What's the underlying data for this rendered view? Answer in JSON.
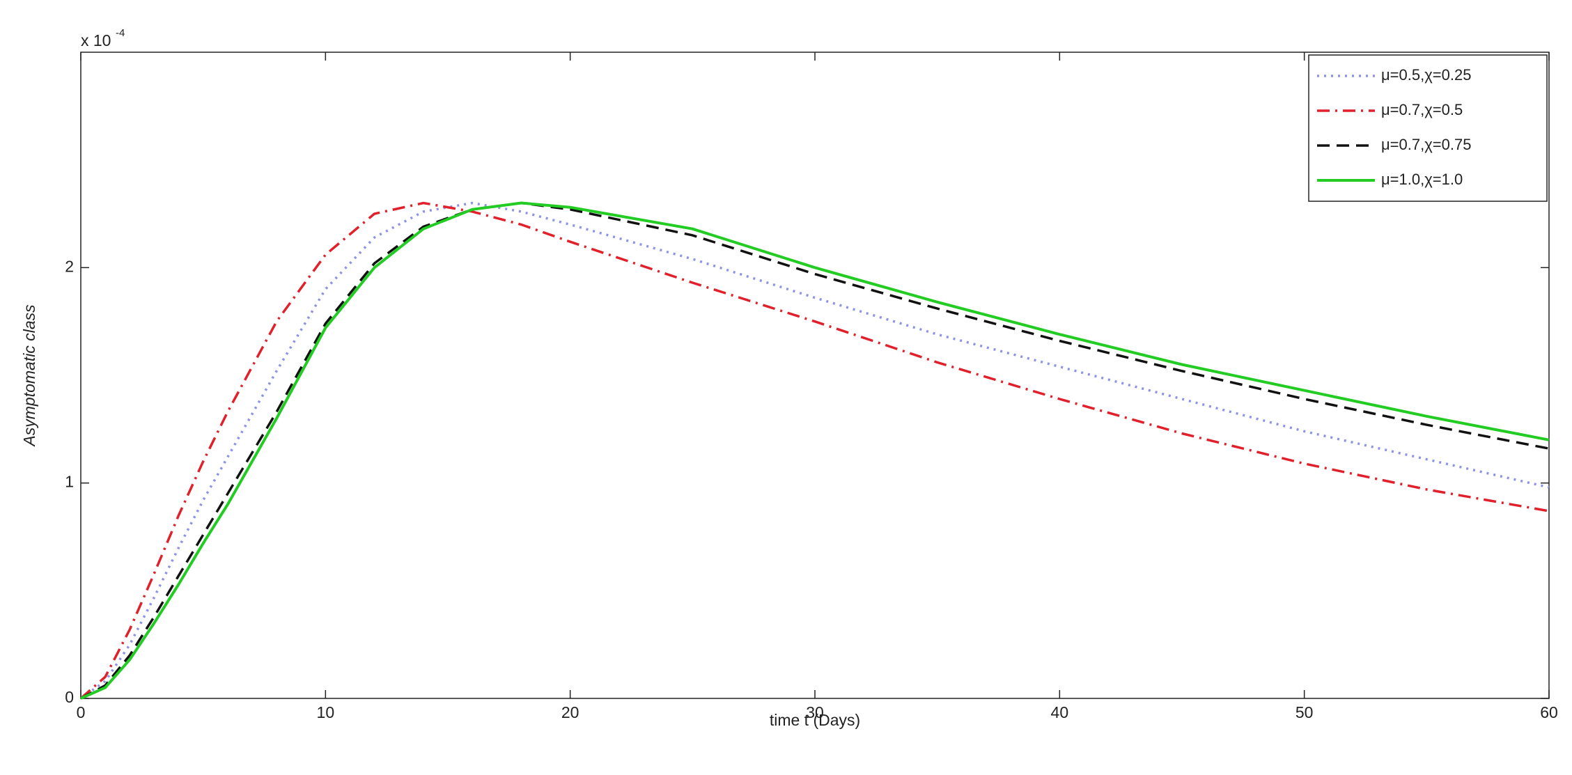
{
  "chart_data": {
    "type": "line",
    "y_label": "Asymptomatic class",
    "x_label": "time t (Days)",
    "y_multiplier": {
      "base": "x 10",
      "exponent": "-4"
    },
    "x": [
      0,
      1,
      2,
      3,
      4,
      5,
      6,
      8,
      10,
      12,
      14,
      16,
      18,
      20,
      25,
      30,
      35,
      40,
      45,
      50,
      55,
      60
    ],
    "series": [
      {
        "name": "μ=0.5,χ=0.25",
        "color": "#8d92e6",
        "style": "dotted",
        "values": [
          0,
          0.08,
          0.25,
          0.47,
          0.7,
          0.92,
          1.12,
          1.52,
          1.9,
          2.14,
          2.26,
          2.3,
          2.26,
          2.2,
          2.04,
          1.86,
          1.69,
          1.54,
          1.39,
          1.24,
          1.11,
          0.98
        ]
      },
      {
        "name": "μ=0.7,χ=0.5",
        "color": "#e0202a",
        "style": "dashdot",
        "values": [
          0,
          0.1,
          0.32,
          0.58,
          0.85,
          1.1,
          1.33,
          1.75,
          2.06,
          2.25,
          2.3,
          2.26,
          2.2,
          2.12,
          1.93,
          1.75,
          1.56,
          1.39,
          1.23,
          1.09,
          0.97,
          0.87
        ]
      },
      {
        "name": "μ=0.7,χ=0.75",
        "color": "#111111",
        "style": "dashed",
        "values": [
          0,
          0.06,
          0.2,
          0.38,
          0.57,
          0.76,
          0.95,
          1.33,
          1.74,
          2.02,
          2.19,
          2.27,
          2.3,
          2.27,
          2.15,
          1.97,
          1.81,
          1.66,
          1.52,
          1.39,
          1.27,
          1.16
        ]
      },
      {
        "name": "μ=1.0,χ=1.0",
        "color": "#22cc22",
        "style": "solid",
        "values": [
          0,
          0.05,
          0.18,
          0.35,
          0.53,
          0.72,
          0.9,
          1.3,
          1.72,
          2.0,
          2.18,
          2.27,
          2.3,
          2.28,
          2.18,
          2.0,
          1.84,
          1.69,
          1.55,
          1.43,
          1.31,
          1.2
        ]
      }
    ],
    "xlim": [
      0,
      60
    ],
    "xticks": [
      0,
      10,
      20,
      30,
      40,
      50,
      60
    ],
    "ylim": [
      0,
      3
    ],
    "yticks": [
      0,
      1,
      2
    ],
    "legend": "upper right"
  }
}
